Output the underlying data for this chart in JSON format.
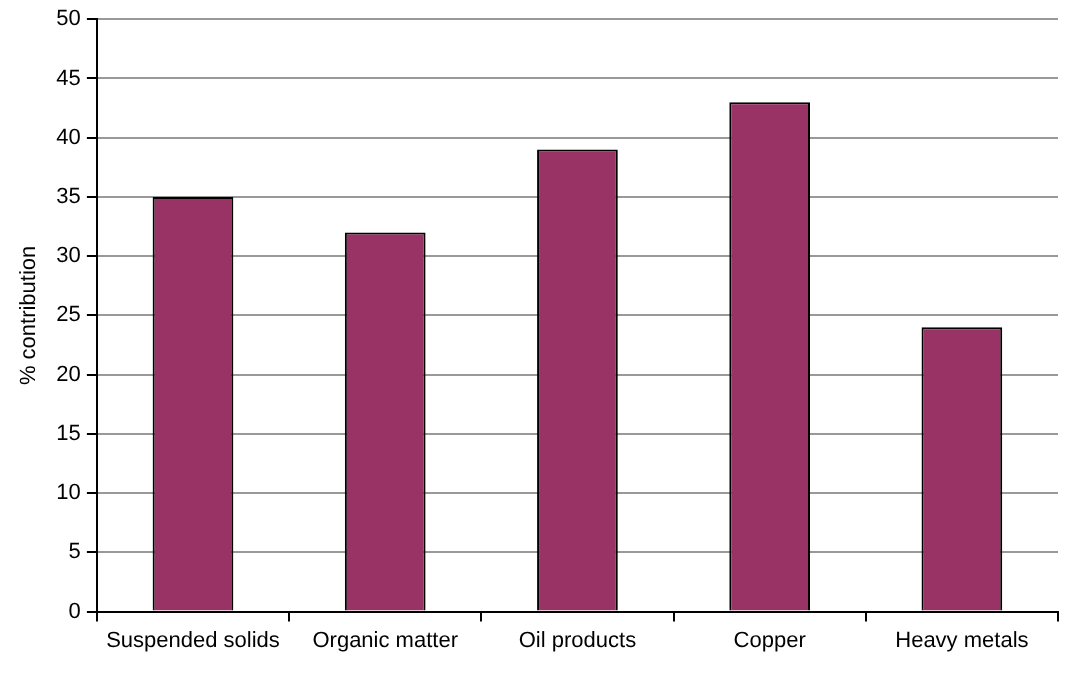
{
  "chart_data": {
    "type": "bar",
    "ylabel": "% contribution",
    "categories": [
      "Suspended solids",
      "Organic matter",
      "Oil products",
      "Copper",
      "Heavy metals"
    ],
    "values": [
      35,
      32,
      39,
      43,
      24
    ],
    "color": "#993366",
    "ylim": [
      0,
      50
    ],
    "yticks": [
      0,
      5,
      10,
      15,
      20,
      25,
      30,
      35,
      40,
      45,
      50
    ],
    "grid": "y",
    "legend": false
  }
}
